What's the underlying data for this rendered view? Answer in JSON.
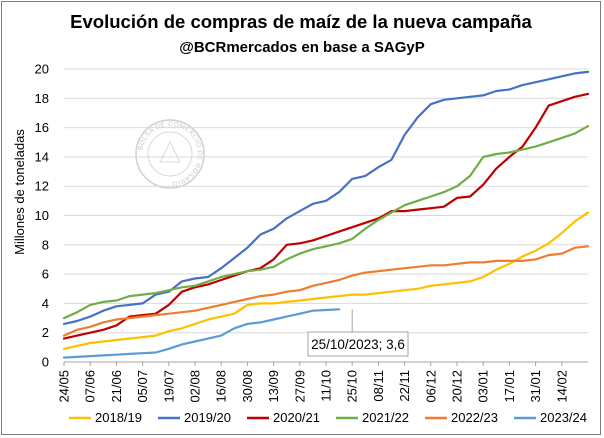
{
  "chart_data": {
    "type": "line",
    "title": "Evolución de compras de maíz de la nueva campaña",
    "subtitle": "@BCRmercados en base a SAGyP",
    "ylabel": "Millones de toneladas",
    "xlabel": "",
    "ylim": [
      0,
      20
    ],
    "yticks": [
      0,
      2,
      4,
      6,
      8,
      10,
      12,
      14,
      16,
      18,
      20
    ],
    "grid": "horizontal",
    "legend": "bottom",
    "x_tick_labels": [
      "24/05",
      "07/06",
      "21/06",
      "05/07",
      "19/07",
      "02/08",
      "16/08",
      "30/08",
      "13/09",
      "27/09",
      "11/10",
      "25/10",
      "08/11",
      "22/11",
      "06/12",
      "20/12",
      "03/01",
      "17/01",
      "31/01",
      "14/02"
    ],
    "x_points": 41,
    "watermark": "BOLSA DE COMERCIO DE ROSARIO",
    "series": [
      {
        "name": "2018/19",
        "color": "#ffc000",
        "values": [
          0.9,
          1.1,
          1.3,
          1.4,
          1.5,
          1.6,
          1.7,
          1.8,
          2.1,
          2.3,
          2.6,
          2.9,
          3.1,
          3.3,
          3.9,
          4.0,
          4.0,
          4.1,
          4.2,
          4.3,
          4.4,
          4.5,
          4.6,
          4.6,
          4.7,
          4.8,
          4.9,
          5.0,
          5.2,
          5.3,
          5.4,
          5.5,
          5.8,
          6.3,
          6.7,
          7.2,
          7.6,
          8.1,
          8.8,
          9.6,
          10.2
        ]
      },
      {
        "name": "2019/20",
        "color": "#4472c4",
        "values": [
          2.6,
          2.8,
          3.1,
          3.5,
          3.8,
          3.9,
          4.0,
          4.6,
          4.8,
          5.5,
          5.7,
          5.8,
          6.4,
          7.1,
          7.8,
          8.7,
          9.1,
          9.8,
          10.3,
          10.8,
          11.0,
          11.6,
          12.5,
          12.7,
          13.3,
          13.8,
          15.5,
          16.7,
          17.6,
          17.9,
          18.0,
          18.1,
          18.2,
          18.5,
          18.6,
          18.9,
          19.1,
          19.3,
          19.5,
          19.7,
          19.8
        ]
      },
      {
        "name": "2020/21",
        "color": "#c00000",
        "values": [
          1.6,
          1.8,
          2.0,
          2.2,
          2.5,
          3.1,
          3.2,
          3.3,
          3.9,
          4.8,
          5.1,
          5.3,
          5.6,
          5.9,
          6.2,
          6.4,
          7.0,
          8.0,
          8.1,
          8.3,
          8.6,
          8.9,
          9.2,
          9.5,
          9.8,
          10.3,
          10.3,
          10.4,
          10.5,
          10.6,
          11.2,
          11.3,
          12.1,
          13.2,
          14.0,
          14.7,
          16.0,
          17.5,
          17.8,
          18.1,
          18.3
        ]
      },
      {
        "name": "2021/22",
        "color": "#70ad47",
        "values": [
          3.0,
          3.4,
          3.9,
          4.1,
          4.2,
          4.5,
          4.6,
          4.7,
          4.9,
          5.1,
          5.2,
          5.5,
          5.8,
          6.0,
          6.2,
          6.3,
          6.5,
          7.0,
          7.4,
          7.7,
          7.9,
          8.1,
          8.4,
          9.1,
          9.7,
          10.2,
          10.7,
          11.0,
          11.3,
          11.6,
          12.0,
          12.7,
          14.0,
          14.2,
          14.3,
          14.5,
          14.7,
          15.0,
          15.3,
          15.6,
          16.1
        ]
      },
      {
        "name": "2022/23",
        "color": "#ed7d31",
        "values": [
          1.8,
          2.2,
          2.4,
          2.7,
          2.9,
          3.0,
          3.1,
          3.2,
          3.3,
          3.4,
          3.5,
          3.7,
          3.9,
          4.1,
          4.3,
          4.5,
          4.6,
          4.8,
          4.9,
          5.2,
          5.4,
          5.6,
          5.9,
          6.1,
          6.2,
          6.3,
          6.4,
          6.5,
          6.6,
          6.6,
          6.7,
          6.8,
          6.8,
          6.9,
          6.9,
          6.9,
          7.0,
          7.3,
          7.4,
          7.8,
          7.9
        ]
      },
      {
        "name": "2023/24",
        "color": "#5b9bd5",
        "values": [
          0.3,
          0.35,
          0.4,
          0.45,
          0.5,
          0.55,
          0.6,
          0.65,
          0.9,
          1.2,
          1.4,
          1.6,
          1.8,
          2.3,
          2.6,
          2.7,
          2.9,
          3.1,
          3.3,
          3.5,
          3.55,
          3.6
        ]
      }
    ],
    "annotations": [
      {
        "text": "25/10/2023; 3,6",
        "series": "2023/24",
        "x_label": "25/10",
        "value": 3.6
      }
    ]
  }
}
